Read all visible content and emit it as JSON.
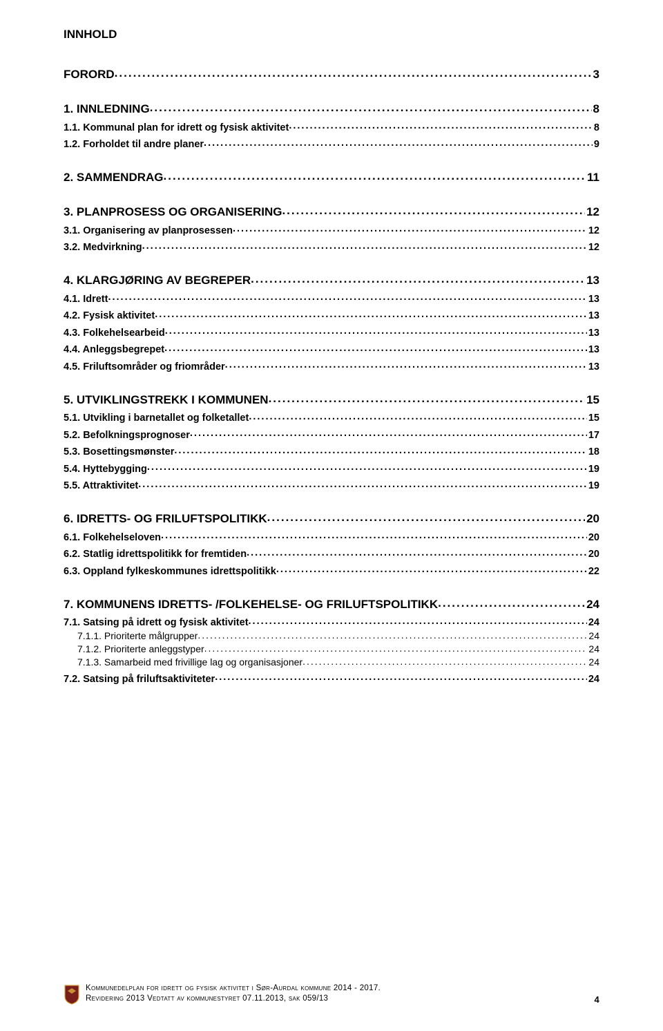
{
  "title": "INNHOLD",
  "toc": [
    {
      "level": 1,
      "label": "FORORD",
      "page": "3",
      "first": true
    },
    {
      "level": 1,
      "label": "1.    INNLEDNING",
      "page": "8"
    },
    {
      "level": 2,
      "label": "1.1.    Kommunal plan for idrett og fysisk aktivitet",
      "page": "8"
    },
    {
      "level": 2,
      "label": "1.2.    Forholdet til andre planer",
      "page": "9"
    },
    {
      "level": 1,
      "label": "2.    SAMMENDRAG",
      "page": "11"
    },
    {
      "level": 1,
      "label": "3.    PLANPROSESS OG ORGANISERING",
      "page": "12"
    },
    {
      "level": 2,
      "label": "3.1.    Organisering av planprosessen",
      "page": "12"
    },
    {
      "level": 2,
      "label": "3.2.    Medvirkning",
      "page": "12"
    },
    {
      "level": 1,
      "label": "4.    KLARGJØRING AV BEGREPER",
      "page": "13"
    },
    {
      "level": 2,
      "label": "4.1.    Idrett",
      "page": "13"
    },
    {
      "level": 2,
      "label": "4.2.    Fysisk aktivitet",
      "page": "13"
    },
    {
      "level": 2,
      "label": "4.3.    Folkehelsearbeid",
      "page": "13"
    },
    {
      "level": 2,
      "label": "4.4.    Anleggsbegrepet",
      "page": "13"
    },
    {
      "level": 2,
      "label": "4.5.    Friluftsområder og friområder",
      "page": "13"
    },
    {
      "level": 1,
      "label": "5.    UTVIKLINGSTREKK I KOMMUNEN",
      "page": "15"
    },
    {
      "level": 2,
      "label": "5.1.    Utvikling i barnetallet og folketallet",
      "page": "15"
    },
    {
      "level": 2,
      "label": "5.2.    Befolkningsprognoser",
      "page": "17"
    },
    {
      "level": 2,
      "label": "5.3.    Bosettingsmønster",
      "page": "18"
    },
    {
      "level": 2,
      "label": "5.4.    Hyttebygging",
      "page": "19"
    },
    {
      "level": 2,
      "label": "5.5.    Attraktivitet",
      "page": "19"
    },
    {
      "level": 1,
      "label": "6.    IDRETTS- OG FRILUFTSPOLITIKK",
      "page": "20"
    },
    {
      "level": 2,
      "label": "6.1.    Folkehelseloven",
      "page": "20"
    },
    {
      "level": 2,
      "label": "6.2.    Statlig idrettspolitikk for fremtiden",
      "page": "20"
    },
    {
      "level": 2,
      "label": "6.3.    Oppland fylkeskommunes idrettspolitikk",
      "page": "22"
    },
    {
      "level": 1,
      "label": "7.    KOMMUNENS IDRETTS- /FOLKEHELSE- OG FRILUFTSPOLITIKK",
      "page": "24"
    },
    {
      "level": 2,
      "label": "7.1.    Satsing på idrett og fysisk aktivitet",
      "page": "24"
    },
    {
      "level": 3,
      "label": "7.1.1.      Prioriterte målgrupper",
      "page": "24"
    },
    {
      "level": 3,
      "label": "7.1.2.      Prioriterte anleggstyper",
      "page": "24"
    },
    {
      "level": 3,
      "label": "7.1.3.      Samarbeid med frivillige lag og organisasjoner",
      "page": "24"
    },
    {
      "level": 2,
      "label": "7.2.    Satsing på friluftsaktiviteter",
      "page": "24"
    }
  ],
  "footer": {
    "line1": "Kommunedelplan for idrett og fysisk aktivitet i Sør-Aurdal kommune 2014 - 2017.",
    "line2_left": "Revidering 2013        Vedtatt av kommunestyret 07.11.2013, sak 059/13",
    "page_number": "4",
    "crest_colors": {
      "shield": "#7a1d1d",
      "border": "#d4a53a"
    }
  }
}
